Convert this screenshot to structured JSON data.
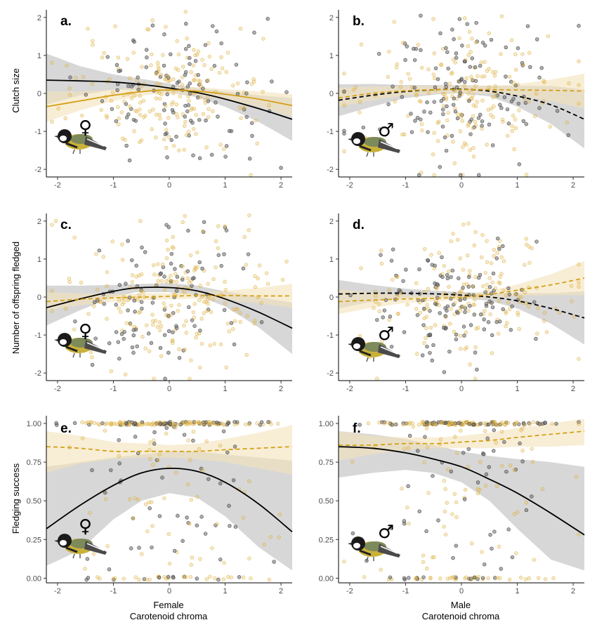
{
  "colors": {
    "gold": "#d4a017",
    "gold_point": "#e8c066",
    "grey_point": "#6e6e6e",
    "black": "#000000",
    "grey_ribbon": "#a6a6a6",
    "gold_ribbon": "#f3e2bb"
  },
  "x_labels": {
    "left": [
      "Female",
      "Carotenoid chroma"
    ],
    "right": [
      "Male",
      "Carotenoid chroma"
    ]
  },
  "chart_data": [
    {
      "type": "scatter",
      "id": "a",
      "panel_label": "a.",
      "sex_symbol": "♀",
      "sex": "female",
      "ylabel": "Clutch size",
      "xlim": [
        -2.2,
        2.2
      ],
      "ylim": [
        -2.2,
        2.2
      ],
      "xticks": [
        -2,
        -1,
        0,
        1,
        2
      ],
      "yticks": [
        -2,
        -1,
        0,
        1,
        2
      ],
      "tick_labels_x": [
        "-2",
        "-1",
        "0",
        "1",
        "2"
      ],
      "tick_labels_y": [
        "-2",
        "-1",
        "0",
        "1",
        "2"
      ],
      "series": [
        {
          "name": "grey fit",
          "style": "solid",
          "x": [
            -2.2,
            -1.6,
            -1.0,
            -0.4,
            0.0,
            0.5,
            1.0,
            1.6,
            2.2
          ],
          "y": [
            0.35,
            0.33,
            0.3,
            0.22,
            0.14,
            0.02,
            -0.15,
            -0.4,
            -0.68
          ],
          "lower": [
            -0.3,
            -0.05,
            0.1,
            0.08,
            0.02,
            -0.1,
            -0.35,
            -0.75,
            -1.25
          ],
          "upper": [
            1.05,
            0.72,
            0.5,
            0.36,
            0.26,
            0.14,
            0.05,
            -0.05,
            -0.12
          ]
        },
        {
          "name": "gold fit",
          "style": "solid",
          "x": [
            -2.2,
            -1.6,
            -1.0,
            -0.4,
            0.0,
            0.5,
            1.0,
            1.6,
            2.2
          ],
          "y": [
            -0.35,
            -0.2,
            -0.05,
            0.06,
            0.09,
            0.06,
            -0.02,
            -0.15,
            -0.32
          ],
          "lower": [
            -0.75,
            -0.45,
            -0.2,
            -0.04,
            0.0,
            -0.04,
            -0.15,
            -0.35,
            -0.62
          ],
          "upper": [
            0.05,
            0.05,
            0.1,
            0.16,
            0.18,
            0.16,
            0.11,
            0.05,
            -0.02
          ]
        }
      ]
    },
    {
      "type": "scatter",
      "id": "b",
      "panel_label": "b.",
      "sex_symbol": "♂",
      "sex": "male",
      "ylabel": "",
      "xlim": [
        -2.2,
        2.2
      ],
      "ylim": [
        -2.2,
        2.2
      ],
      "xticks": [
        -2,
        -1,
        0,
        1,
        2
      ],
      "yticks": [
        -2,
        -1,
        0,
        1,
        2
      ],
      "tick_labels_x": [
        "-2",
        "-1",
        "0",
        "1",
        "2"
      ],
      "tick_labels_y": [
        "-2",
        "-1",
        "0",
        "1",
        "2"
      ],
      "series": [
        {
          "name": "grey fit",
          "style": "dashed",
          "x": [
            -2.2,
            -1.6,
            -1.0,
            -0.4,
            0.0,
            0.5,
            1.0,
            1.6,
            2.2
          ],
          "y": [
            -0.18,
            -0.05,
            0.05,
            0.1,
            0.11,
            0.06,
            -0.07,
            -0.3,
            -0.68
          ],
          "lower": [
            -0.6,
            -0.35,
            -0.12,
            -0.02,
            0.0,
            -0.08,
            -0.35,
            -0.8,
            -1.45
          ],
          "upper": [
            0.24,
            0.25,
            0.22,
            0.22,
            0.22,
            0.2,
            0.2,
            0.2,
            0.1
          ]
        },
        {
          "name": "gold fit",
          "style": "dashed",
          "x": [
            -2.2,
            -1.6,
            -1.0,
            -0.4,
            0.0,
            0.5,
            1.0,
            1.6,
            2.2
          ],
          "y": [
            -0.12,
            0.0,
            0.07,
            0.1,
            0.1,
            0.1,
            0.09,
            0.08,
            0.06
          ],
          "lower": [
            -0.35,
            -0.18,
            -0.05,
            0.0,
            0.0,
            0.0,
            -0.05,
            -0.2,
            -0.4
          ],
          "upper": [
            0.15,
            0.18,
            0.19,
            0.2,
            0.2,
            0.2,
            0.24,
            0.36,
            0.52
          ]
        }
      ]
    },
    {
      "type": "scatter",
      "id": "c",
      "panel_label": "c.",
      "sex_symbol": "♀",
      "sex": "female",
      "ylabel": "Number of offspring fledged",
      "xlim": [
        -2.2,
        2.2
      ],
      "ylim": [
        -2.2,
        2.2
      ],
      "xticks": [
        -2,
        -1,
        0,
        1,
        2
      ],
      "yticks": [
        -2,
        -1,
        0,
        1,
        2
      ],
      "tick_labels_x": [
        "-2",
        "-1",
        "0",
        "1",
        "2"
      ],
      "tick_labels_y": [
        "-2",
        "-1",
        "0",
        "1",
        "2"
      ],
      "series": [
        {
          "name": "grey fit",
          "style": "solid",
          "x": [
            -2.2,
            -1.6,
            -1.0,
            -0.6,
            0.0,
            0.5,
            1.0,
            1.6,
            2.2
          ],
          "y": [
            -0.28,
            -0.05,
            0.15,
            0.24,
            0.25,
            0.16,
            -0.05,
            -0.4,
            -0.82
          ],
          "lower": [
            -0.75,
            -0.35,
            0.0,
            0.13,
            0.13,
            0.04,
            -0.25,
            -0.8,
            -1.5
          ],
          "upper": [
            0.3,
            0.3,
            0.32,
            0.34,
            0.37,
            0.3,
            0.15,
            0.0,
            -0.15
          ]
        },
        {
          "name": "gold fit",
          "style": "dashed",
          "x": [
            -2.2,
            -1.6,
            -1.0,
            -0.4,
            0.0,
            0.5,
            1.0,
            1.6,
            2.2
          ],
          "y": [
            -0.12,
            -0.06,
            -0.02,
            0.0,
            0.02,
            0.04,
            0.04,
            0.03,
            0.03
          ],
          "lower": [
            -0.35,
            -0.22,
            -0.12,
            -0.08,
            -0.06,
            -0.04,
            -0.08,
            -0.16,
            -0.28
          ],
          "upper": [
            0.12,
            0.1,
            0.08,
            0.1,
            0.1,
            0.12,
            0.16,
            0.24,
            0.35
          ]
        }
      ]
    },
    {
      "type": "scatter",
      "id": "d",
      "panel_label": "d.",
      "sex_symbol": "♂",
      "sex": "male",
      "ylabel": "",
      "xlim": [
        -2.2,
        2.2
      ],
      "ylim": [
        -2.2,
        2.2
      ],
      "xticks": [
        -2,
        -1,
        0,
        1,
        2
      ],
      "yticks": [
        -2,
        -1,
        0,
        1,
        2
      ],
      "tick_labels_x": [
        "-2",
        "-1",
        "0",
        "1",
        "2"
      ],
      "tick_labels_y": [
        "-2",
        "-1",
        "0",
        "1",
        "2"
      ],
      "series": [
        {
          "name": "grey fit",
          "style": "dashed",
          "x": [
            -2.2,
            -1.6,
            -1.0,
            -0.4,
            0.0,
            0.5,
            1.0,
            1.6,
            2.2
          ],
          "y": [
            0.08,
            0.1,
            0.1,
            0.08,
            0.05,
            0.0,
            -0.1,
            -0.3,
            -0.55
          ],
          "lower": [
            -0.3,
            -0.12,
            -0.02,
            0.0,
            -0.03,
            -0.1,
            -0.3,
            -0.7,
            -1.25
          ],
          "upper": [
            0.45,
            0.32,
            0.22,
            0.16,
            0.13,
            0.1,
            0.1,
            0.1,
            0.15
          ]
        },
        {
          "name": "gold fit",
          "style": "dashed",
          "x": [
            -2.2,
            -1.6,
            -1.0,
            -0.4,
            0.0,
            0.5,
            1.0,
            1.6,
            2.2
          ],
          "y": [
            -0.12,
            -0.08,
            -0.05,
            -0.03,
            0.0,
            0.07,
            0.18,
            0.32,
            0.5
          ],
          "lower": [
            -0.45,
            -0.28,
            -0.15,
            -0.1,
            -0.08,
            -0.02,
            0.03,
            0.05,
            0.05
          ],
          "upper": [
            0.2,
            0.12,
            0.05,
            0.04,
            0.08,
            0.16,
            0.33,
            0.6,
            0.95
          ]
        }
      ]
    },
    {
      "type": "scatter",
      "id": "e",
      "panel_label": "e.",
      "sex_symbol": "♀",
      "sex": "female",
      "ylabel": "Fledging success",
      "xlim": [
        -2.2,
        2.2
      ],
      "ylim": [
        -0.03,
        1.05
      ],
      "xticks": [
        -2,
        -1,
        0,
        1,
        2
      ],
      "yticks": [
        0,
        0.25,
        0.5,
        0.75,
        1.0
      ],
      "tick_labels_x": [
        "-2",
        "-1",
        "0",
        "1",
        "2"
      ],
      "tick_labels_y": [
        "0.00",
        "0.25",
        "0.50",
        "0.75",
        "1.00"
      ],
      "series": [
        {
          "name": "grey fit",
          "style": "solid",
          "x": [
            -2.2,
            -1.6,
            -1.0,
            -0.5,
            0.0,
            0.5,
            1.0,
            1.6,
            2.2
          ],
          "y": [
            0.32,
            0.47,
            0.6,
            0.68,
            0.71,
            0.69,
            0.62,
            0.48,
            0.3
          ],
          "lower": [
            0.08,
            0.18,
            0.38,
            0.5,
            0.55,
            0.52,
            0.4,
            0.2,
            0.05
          ],
          "upper": [
            0.72,
            0.75,
            0.78,
            0.8,
            0.82,
            0.82,
            0.8,
            0.78,
            0.76
          ]
        },
        {
          "name": "gold fit",
          "style": "dashed",
          "x": [
            -2.2,
            -1.6,
            -1.0,
            -0.4,
            0.0,
            0.5,
            1.0,
            1.6,
            2.2
          ],
          "y": [
            0.85,
            0.84,
            0.82,
            0.82,
            0.82,
            0.82,
            0.83,
            0.84,
            0.85
          ],
          "lower": [
            0.68,
            0.74,
            0.77,
            0.78,
            0.78,
            0.77,
            0.75,
            0.71,
            0.67
          ],
          "upper": [
            0.95,
            0.92,
            0.88,
            0.87,
            0.86,
            0.87,
            0.9,
            0.94,
            0.99
          ]
        }
      ]
    },
    {
      "type": "scatter",
      "id": "f",
      "panel_label": "f.",
      "sex_symbol": "♂",
      "sex": "male",
      "ylabel": "",
      "xlim": [
        -2.2,
        2.2
      ],
      "ylim": [
        -0.03,
        1.05
      ],
      "xticks": [
        -2,
        -1,
        0,
        1,
        2
      ],
      "yticks": [
        0,
        0.25,
        0.5,
        0.75,
        1.0
      ],
      "tick_labels_x": [
        "-2",
        "-1",
        "0",
        "1",
        "2"
      ],
      "tick_labels_y": [
        "0.00",
        "0.25",
        "0.50",
        "0.75",
        "1.00"
      ],
      "series": [
        {
          "name": "grey fit",
          "style": "solid",
          "x": [
            -2.2,
            -1.6,
            -1.0,
            -0.5,
            0.0,
            0.5,
            1.0,
            1.6,
            2.2
          ],
          "y": [
            0.85,
            0.84,
            0.81,
            0.77,
            0.72,
            0.64,
            0.55,
            0.42,
            0.28
          ],
          "lower": [
            0.65,
            0.68,
            0.7,
            0.68,
            0.62,
            0.5,
            0.32,
            0.12,
            0.05
          ],
          "upper": [
            0.95,
            0.93,
            0.9,
            0.86,
            0.82,
            0.79,
            0.77,
            0.75,
            0.72
          ]
        },
        {
          "name": "gold fit",
          "style": "dashed",
          "x": [
            -2.2,
            -1.6,
            -1.0,
            -0.4,
            0.0,
            0.5,
            1.0,
            1.6,
            2.2
          ],
          "y": [
            0.86,
            0.86,
            0.87,
            0.87,
            0.88,
            0.89,
            0.91,
            0.93,
            0.95
          ],
          "lower": [
            0.76,
            0.8,
            0.83,
            0.84,
            0.84,
            0.84,
            0.85,
            0.85,
            0.86
          ],
          "upper": [
            0.95,
            0.92,
            0.91,
            0.91,
            0.92,
            0.94,
            0.97,
            1.0,
            1.03
          ]
        }
      ]
    }
  ]
}
